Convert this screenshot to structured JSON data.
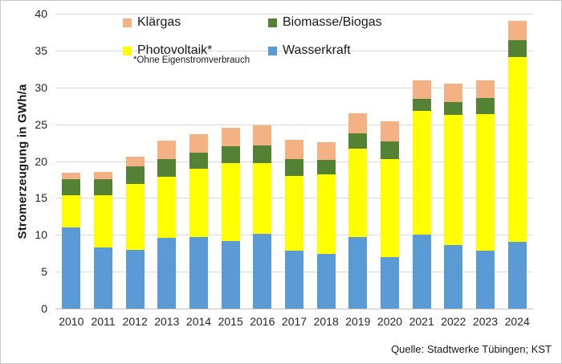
{
  "chart_data": {
    "type": "bar",
    "stacked": true,
    "ylabel": "Stromerzeugung in GWh/a",
    "xlabel": "",
    "ylim": [
      0,
      40
    ],
    "yticks": [
      0,
      5,
      10,
      15,
      20,
      25,
      30,
      35,
      40
    ],
    "grid": true,
    "categories": [
      "2010",
      "2011",
      "2012",
      "2013",
      "2014",
      "2015",
      "2016",
      "2017",
      "2018",
      "2019",
      "2020",
      "2021",
      "2022",
      "2023",
      "2024"
    ],
    "series": [
      {
        "name": "Wasserkraft",
        "color": "#5b9bd5",
        "values": [
          11.0,
          8.3,
          8.0,
          9.6,
          9.7,
          9.2,
          10.1,
          7.9,
          7.4,
          9.7,
          7.0,
          10.0,
          8.6,
          7.9,
          9.1
        ]
      },
      {
        "name": "Photovoltaik*",
        "color": "#ffff00",
        "values": [
          4.4,
          7.1,
          8.9,
          8.3,
          9.3,
          10.5,
          9.6,
          10.1,
          10.8,
          12.0,
          13.3,
          16.8,
          17.7,
          18.5,
          25.0
        ]
      },
      {
        "name": "Biomasse/Biogas",
        "color": "#548235",
        "values": [
          2.1,
          2.1,
          2.4,
          2.4,
          2.2,
          2.3,
          2.4,
          2.3,
          2.0,
          2.1,
          2.4,
          1.7,
          1.7,
          2.2,
          2.3
        ]
      },
      {
        "name": "Klärgas",
        "color": "#f4b183",
        "values": [
          0.9,
          1.0,
          1.3,
          2.5,
          2.5,
          2.5,
          2.7,
          2.6,
          2.4,
          2.7,
          2.7,
          2.5,
          2.5,
          2.4,
          2.6
        ]
      }
    ],
    "legend": {
      "position": "top-inside",
      "items": [
        {
          "label": "Klärgas",
          "color": "#f4b183"
        },
        {
          "label": "Biomasse/Biogas",
          "color": "#548235"
        },
        {
          "label": "Photovoltaik*",
          "color": "#ffff00",
          "note": "*Ohne Eigenstromverbrauch"
        },
        {
          "label": "Wasserkraft",
          "color": "#5b9bd5"
        }
      ]
    },
    "source": "Quelle: Stadtwerke Tübingen; KST",
    "colors": {
      "gridline": "#d9d9d9",
      "axis_line": "#bfbfbf",
      "text": "#262626"
    }
  }
}
